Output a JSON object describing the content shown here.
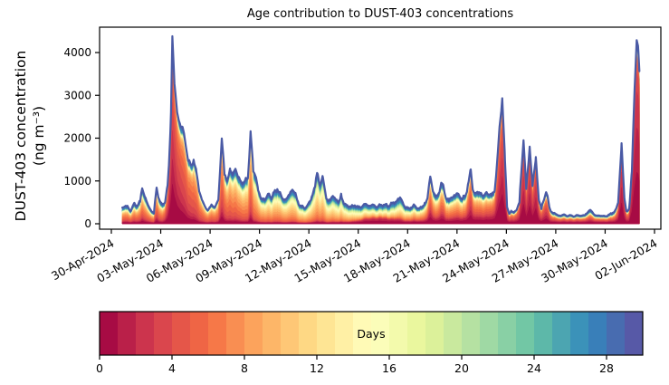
{
  "figure": {
    "title": "Age contribution to DUST-403 concentrations"
  },
  "y_axis": {
    "label_line1": "DUST-403 concentration",
    "label_line2": "(ng m⁻³)",
    "ticks": [
      0,
      1000,
      2000,
      3000,
      4000
    ],
    "range_shown": [
      -130,
      4590
    ]
  },
  "x_axis": {
    "tick_hours": [
      0,
      72,
      144,
      216,
      288,
      360,
      432,
      504,
      576,
      648,
      720,
      792
    ],
    "tick_labels": [
      "30-Apr-2024",
      "03-May-2024",
      "06-May-2024",
      "09-May-2024",
      "12-May-2024",
      "15-May-2024",
      "18-May-2024",
      "21-May-2024",
      "24-May-2024",
      "27-May-2024",
      "30-May-2024",
      "02-Jun-2024"
    ],
    "label_rotation_deg": 30
  },
  "colorbar": {
    "label": "Days",
    "min": 0,
    "max": 30,
    "n_colors": 30,
    "ticks": [
      0,
      4,
      8,
      12,
      16,
      20,
      24,
      28
    ]
  },
  "colors": {
    "spectral_anchors": [
      "#9e0142",
      "#d53e4f",
      "#f46d43",
      "#fdae61",
      "#fee08b",
      "#ffffbf",
      "#e6f598",
      "#abdda4",
      "#66c2a5",
      "#3288bd",
      "#5e4fa2"
    ],
    "envelope": "#4a5aa5",
    "axis": "#000000",
    "background": "#ffffff"
  },
  "chart_data": {
    "type": "area",
    "stacked": true,
    "n_age_bins": 30,
    "age_bin_days": 1,
    "time_reference": "hours since 30-Apr-2024 00:00",
    "columns": [
      "hour",
      "total_ng_m3",
      "dominant_age_days",
      "aged_background_fraction",
      "fresh_fraction"
    ],
    "samples": [
      [
        16,
        380,
        7,
        0.38,
        0.12
      ],
      [
        22,
        430,
        7,
        0.38,
        0.12
      ],
      [
        28,
        300,
        7,
        0.38,
        0.12
      ],
      [
        33,
        460,
        7,
        0.38,
        0.12
      ],
      [
        37,
        420,
        7,
        0.38,
        0.12
      ],
      [
        42,
        520,
        7,
        0.38,
        0.12
      ],
      [
        45,
        870,
        7,
        0.35,
        0.15
      ],
      [
        50,
        560,
        7,
        0.38,
        0.12
      ],
      [
        54,
        420,
        7,
        0.38,
        0.12
      ],
      [
        58,
        300,
        7,
        0.38,
        0.12
      ],
      [
        62,
        260,
        7,
        0.38,
        0.12
      ],
      [
        66,
        830,
        6.5,
        0.3,
        0.18
      ],
      [
        70,
        560,
        7,
        0.35,
        0.12
      ],
      [
        74,
        420,
        7,
        0.35,
        0.12
      ],
      [
        78,
        520,
        6,
        0.3,
        0.2
      ],
      [
        82,
        900,
        5,
        0.25,
        0.3
      ],
      [
        84,
        1350,
        4.5,
        0.18,
        0.38
      ],
      [
        87,
        2600,
        4,
        0.12,
        0.45
      ],
      [
        89,
        4380,
        4,
        0.1,
        0.45
      ],
      [
        92,
        3300,
        4,
        0.1,
        0.42
      ],
      [
        96,
        2600,
        4.5,
        0.12,
        0.35
      ],
      [
        100,
        2300,
        4.5,
        0.14,
        0.3
      ],
      [
        104,
        2250,
        5,
        0.15,
        0.25
      ],
      [
        108,
        1900,
        5,
        0.16,
        0.22
      ],
      [
        112,
        1500,
        5.5,
        0.18,
        0.18
      ],
      [
        116,
        1350,
        5.5,
        0.18,
        0.15
      ],
      [
        120,
        1480,
        6,
        0.2,
        0.14
      ],
      [
        124,
        1200,
        6,
        0.2,
        0.12
      ],
      [
        128,
        800,
        6.5,
        0.22,
        0.1
      ],
      [
        132,
        560,
        6.5,
        0.24,
        0.1
      ],
      [
        136,
        420,
        7,
        0.25,
        0.1
      ],
      [
        140,
        300,
        7,
        0.26,
        0.1
      ],
      [
        145,
        430,
        7,
        0.26,
        0.1
      ],
      [
        150,
        390,
        7,
        0.26,
        0.1
      ],
      [
        156,
        520,
        7,
        0.26,
        0.1
      ],
      [
        161,
        2030,
        6,
        0.2,
        0.18
      ],
      [
        165,
        1150,
        6.5,
        0.22,
        0.12
      ],
      [
        169,
        1000,
        7,
        0.24,
        0.1
      ],
      [
        173,
        1250,
        7,
        0.25,
        0.08
      ],
      [
        177,
        1150,
        7.5,
        0.26,
        0.08
      ],
      [
        181,
        1300,
        7.5,
        0.26,
        0.08
      ],
      [
        185,
        1100,
        8,
        0.26,
        0.08
      ],
      [
        189,
        950,
        8,
        0.27,
        0.07
      ],
      [
        194,
        1000,
        8.5,
        0.28,
        0.06
      ],
      [
        199,
        1050,
        8.5,
        0.28,
        0.06
      ],
      [
        203,
        2130,
        7,
        0.22,
        0.12
      ],
      [
        207,
        1250,
        8.5,
        0.28,
        0.06
      ],
      [
        211,
        1100,
        9,
        0.3,
        0.05
      ],
      [
        214,
        800,
        9,
        0.3,
        0.05
      ],
      [
        218,
        600,
        9.5,
        0.3,
        0.05
      ],
      [
        222,
        560,
        9.5,
        0.3,
        0.05
      ],
      [
        226,
        600,
        10,
        0.32,
        0.04
      ],
      [
        230,
        700,
        10,
        0.32,
        0.04
      ],
      [
        234,
        620,
        10,
        0.32,
        0.04
      ],
      [
        238,
        750,
        10,
        0.32,
        0.04
      ],
      [
        242,
        800,
        10,
        0.32,
        0.04
      ],
      [
        246,
        700,
        10,
        0.32,
        0.04
      ],
      [
        249,
        600,
        10,
        0.32,
        0.04
      ],
      [
        255,
        560,
        10.5,
        0.32,
        0.04
      ],
      [
        260,
        700,
        10.5,
        0.32,
        0.04
      ],
      [
        264,
        830,
        10.5,
        0.32,
        0.04
      ],
      [
        268,
        700,
        10.5,
        0.32,
        0.04
      ],
      [
        272,
        500,
        11,
        0.33,
        0.04
      ],
      [
        277,
        400,
        11,
        0.33,
        0.04
      ],
      [
        281,
        380,
        11,
        0.33,
        0.04
      ],
      [
        286,
        420,
        11,
        0.33,
        0.04
      ],
      [
        292,
        600,
        11,
        0.33,
        0.04
      ],
      [
        297,
        900,
        11,
        0.33,
        0.04
      ],
      [
        300,
        1220,
        11,
        0.3,
        0.04
      ],
      [
        304,
        900,
        11,
        0.32,
        0.04
      ],
      [
        308,
        1100,
        11,
        0.3,
        0.04
      ],
      [
        312,
        700,
        11.5,
        0.33,
        0.04
      ],
      [
        315,
        560,
        11.5,
        0.33,
        0.04
      ],
      [
        319,
        520,
        11.5,
        0.34,
        0.05
      ],
      [
        323,
        700,
        11.5,
        0.33,
        0.05
      ],
      [
        327,
        560,
        12,
        0.34,
        0.05
      ],
      [
        331,
        500,
        12,
        0.34,
        0.06
      ],
      [
        335,
        650,
        12,
        0.33,
        0.06
      ],
      [
        339,
        480,
        12,
        0.35,
        0.07
      ],
      [
        344,
        420,
        12.5,
        0.36,
        0.08
      ],
      [
        350,
        400,
        12.5,
        0.37,
        0.1
      ],
      [
        355,
        430,
        13,
        0.38,
        0.12
      ],
      [
        360,
        380,
        13,
        0.4,
        0.15
      ],
      [
        366,
        420,
        13,
        0.4,
        0.2
      ],
      [
        371,
        460,
        13,
        0.4,
        0.24
      ],
      [
        376,
        420,
        13,
        0.4,
        0.26
      ],
      [
        381,
        440,
        13,
        0.4,
        0.28
      ],
      [
        387,
        400,
        13.5,
        0.4,
        0.3
      ],
      [
        392,
        430,
        13.5,
        0.4,
        0.3
      ],
      [
        397,
        450,
        13.5,
        0.4,
        0.28
      ],
      [
        403,
        420,
        13.5,
        0.42,
        0.25
      ],
      [
        408,
        460,
        13.5,
        0.42,
        0.22
      ],
      [
        413,
        500,
        13,
        0.42,
        0.2
      ],
      [
        418,
        560,
        13,
        0.4,
        0.18
      ],
      [
        421,
        610,
        12.5,
        0.4,
        0.16
      ],
      [
        425,
        480,
        12,
        0.4,
        0.15
      ],
      [
        429,
        400,
        11,
        0.38,
        0.15
      ],
      [
        433,
        350,
        10.5,
        0.38,
        0.16
      ],
      [
        437,
        380,
        10,
        0.37,
        0.16
      ],
      [
        441,
        420,
        10,
        0.36,
        0.17
      ],
      [
        445,
        390,
        9.5,
        0.36,
        0.17
      ],
      [
        449,
        360,
        9.5,
        0.36,
        0.18
      ],
      [
        453,
        400,
        9,
        0.35,
        0.18
      ],
      [
        457,
        450,
        9,
        0.35,
        0.18
      ],
      [
        461,
        600,
        8,
        0.3,
        0.22
      ],
      [
        465,
        1100,
        6.5,
        0.24,
        0.3
      ],
      [
        469,
        800,
        7.5,
        0.3,
        0.22
      ],
      [
        473,
        600,
        8,
        0.32,
        0.2
      ],
      [
        477,
        700,
        7.5,
        0.3,
        0.22
      ],
      [
        481,
        930,
        7,
        0.28,
        0.25
      ],
      [
        484,
        880,
        7,
        0.28,
        0.25
      ],
      [
        488,
        600,
        8,
        0.32,
        0.2
      ],
      [
        492,
        560,
        8,
        0.32,
        0.2
      ],
      [
        496,
        620,
        8,
        0.32,
        0.2
      ],
      [
        500,
        640,
        8,
        0.3,
        0.22
      ],
      [
        504,
        700,
        8,
        0.3,
        0.22
      ],
      [
        508,
        650,
        8,
        0.3,
        0.22
      ],
      [
        512,
        600,
        8,
        0.3,
        0.23
      ],
      [
        516,
        630,
        8,
        0.3,
        0.24
      ],
      [
        520,
        900,
        6.5,
        0.26,
        0.28
      ],
      [
        524,
        1250,
        5.5,
        0.2,
        0.33
      ],
      [
        527,
        800,
        6.5,
        0.26,
        0.28
      ],
      [
        531,
        700,
        7,
        0.28,
        0.26
      ],
      [
        535,
        750,
        7,
        0.28,
        0.26
      ],
      [
        539,
        700,
        7,
        0.28,
        0.26
      ],
      [
        543,
        650,
        7,
        0.28,
        0.26
      ],
      [
        547,
        700,
        7,
        0.28,
        0.27
      ],
      [
        551,
        720,
        6.5,
        0.27,
        0.28
      ],
      [
        555,
        650,
        6.5,
        0.26,
        0.3
      ],
      [
        559,
        800,
        6,
        0.24,
        0.33
      ],
      [
        563,
        1500,
        5,
        0.18,
        0.4
      ],
      [
        566,
        2250,
        4.5,
        0.14,
        0.45
      ],
      [
        570,
        2900,
        4,
        0.12,
        0.5
      ],
      [
        574,
        1500,
        4.5,
        0.16,
        0.45
      ],
      [
        577,
        400,
        5,
        0.25,
        0.35
      ],
      [
        580,
        220,
        5.5,
        0.3,
        0.3
      ],
      [
        583,
        300,
        5.5,
        0.3,
        0.3
      ],
      [
        587,
        250,
        5.5,
        0.3,
        0.3
      ],
      [
        591,
        350,
        5,
        0.28,
        0.32
      ],
      [
        595,
        500,
        4.5,
        0.24,
        0.35
      ],
      [
        601,
        2000,
        3.5,
        0.12,
        0.5
      ],
      [
        605,
        800,
        4.5,
        0.2,
        0.4
      ],
      [
        610,
        1800,
        3.5,
        0.13,
        0.5
      ],
      [
        614,
        900,
        4.5,
        0.2,
        0.4
      ],
      [
        619,
        1520,
        3.5,
        0.14,
        0.5
      ],
      [
        623,
        600,
        4.5,
        0.25,
        0.35
      ],
      [
        627,
        350,
        5,
        0.3,
        0.3
      ],
      [
        634,
        780,
        4.5,
        0.25,
        0.35
      ],
      [
        639,
        350,
        5.5,
        0.32,
        0.28
      ],
      [
        644,
        250,
        6,
        0.4,
        0.28
      ],
      [
        649,
        220,
        6,
        0.42,
        0.28
      ],
      [
        655,
        180,
        6,
        0.44,
        0.28
      ],
      [
        660,
        220,
        6,
        0.44,
        0.28
      ],
      [
        665,
        180,
        6,
        0.45,
        0.28
      ],
      [
        671,
        200,
        6,
        0.45,
        0.28
      ],
      [
        676,
        170,
        6,
        0.45,
        0.28
      ],
      [
        681,
        210,
        6,
        0.45,
        0.28
      ],
      [
        686,
        180,
        6,
        0.45,
        0.28
      ],
      [
        692,
        220,
        6,
        0.45,
        0.28
      ],
      [
        698,
        330,
        6,
        0.42,
        0.28
      ],
      [
        704,
        220,
        6,
        0.44,
        0.28
      ],
      [
        709,
        180,
        6,
        0.45,
        0.28
      ],
      [
        714,
        200,
        6,
        0.45,
        0.28
      ],
      [
        719,
        170,
        6,
        0.45,
        0.28
      ],
      [
        725,
        200,
        6,
        0.44,
        0.28
      ],
      [
        730,
        250,
        6,
        0.42,
        0.28
      ],
      [
        735,
        300,
        6,
        0.4,
        0.28
      ],
      [
        739,
        500,
        5,
        0.3,
        0.35
      ],
      [
        744,
        1870,
        3,
        0.12,
        0.55
      ],
      [
        748,
        600,
        4,
        0.22,
        0.4
      ],
      [
        751,
        280,
        5,
        0.3,
        0.32
      ],
      [
        755,
        350,
        4.5,
        0.28,
        0.33
      ],
      [
        759,
        1200,
        3,
        0.14,
        0.5
      ],
      [
        763,
        3200,
        2.5,
        0.1,
        0.58
      ],
      [
        766,
        4300,
        2.5,
        0.1,
        0.6
      ],
      [
        768,
        4100,
        2.5,
        0.1,
        0.6
      ],
      [
        770,
        3600,
        2.5,
        0.1,
        0.6
      ]
    ]
  }
}
